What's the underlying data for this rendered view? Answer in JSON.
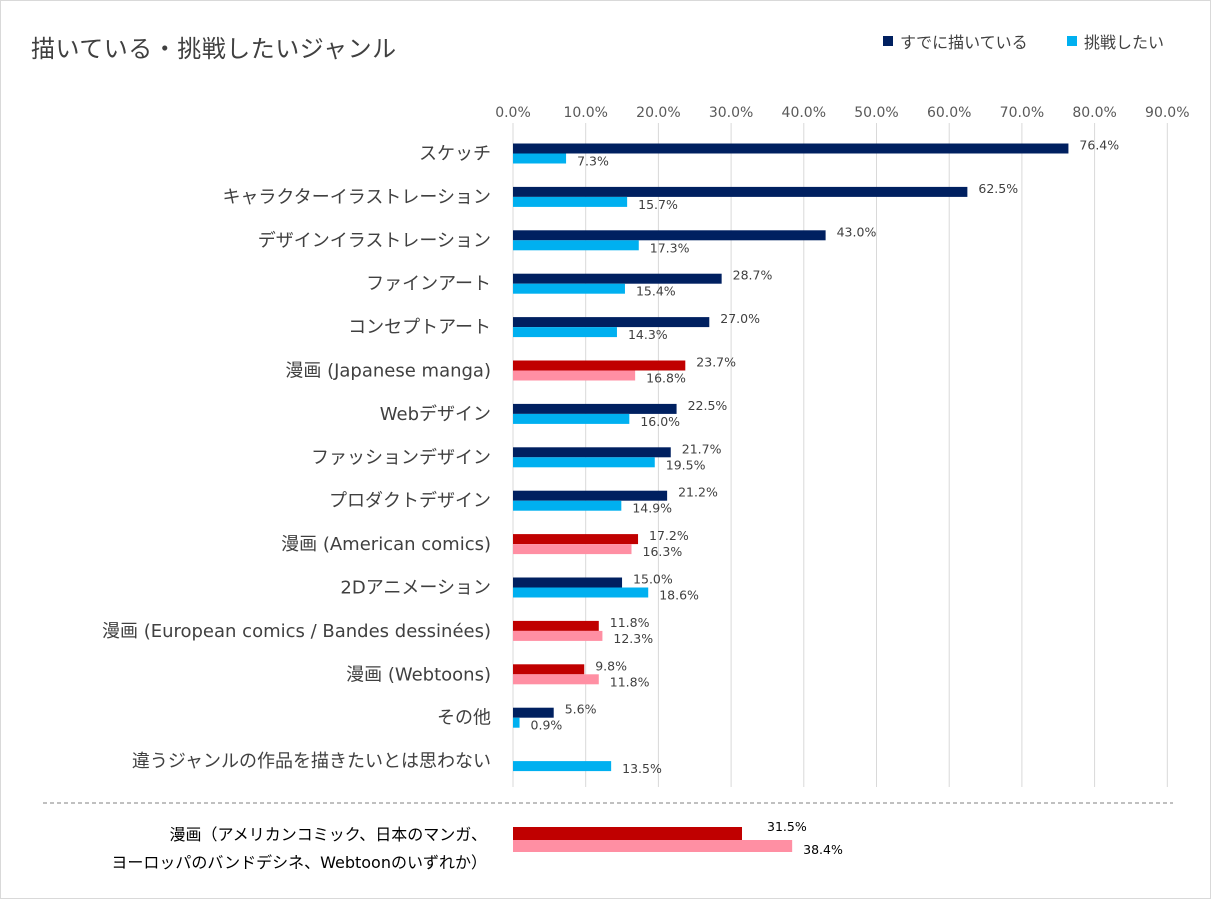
{
  "title": "描いている・挑戦したいジャンル",
  "legend": {
    "series1": {
      "label": "すでに描いている",
      "color": "#002060"
    },
    "series2": {
      "label": "挑戦したい",
      "color": "#00B0F0"
    }
  },
  "highlight_colors": {
    "series1": "#C00000",
    "series2": "#FF8FA3"
  },
  "chart_data": {
    "type": "bar",
    "orientation": "horizontal",
    "title": "描いている・挑戦したいジャンル",
    "xlim": [
      0,
      90
    ],
    "xticks": [
      "0.0%",
      "10.0%",
      "20.0%",
      "30.0%",
      "40.0%",
      "50.0%",
      "60.0%",
      "70.0%",
      "80.0%",
      "90.0%"
    ],
    "grid": true,
    "legend_position": "top-right",
    "series": [
      {
        "name": "すでに描いている",
        "color": "#002060"
      },
      {
        "name": "挑戦したい",
        "color": "#00B0F0"
      }
    ],
    "rows": [
      {
        "label": "スケッチ",
        "v1": 76.4,
        "v2": 7.3,
        "l1": "76.4%",
        "l2": "7.3%",
        "highlight": false
      },
      {
        "label": "キャラクターイラストレーション",
        "v1": 62.5,
        "v2": 15.7,
        "l1": "62.5%",
        "l2": "15.7%",
        "highlight": false
      },
      {
        "label": "デザインイラストレーション",
        "v1": 43.0,
        "v2": 17.3,
        "l1": "43.0%",
        "l2": "17.3%",
        "highlight": false
      },
      {
        "label": "ファインアート",
        "v1": 28.7,
        "v2": 15.4,
        "l1": "28.7%",
        "l2": "15.4%",
        "highlight": false
      },
      {
        "label": "コンセプトアート",
        "v1": 27.0,
        "v2": 14.3,
        "l1": "27.0%",
        "l2": "14.3%",
        "highlight": false
      },
      {
        "label": "漫画 (Japanese manga)",
        "v1": 23.7,
        "v2": 16.8,
        "l1": "23.7%",
        "l2": "16.8%",
        "highlight": true
      },
      {
        "label": "Webデザイン",
        "v1": 22.5,
        "v2": 16.0,
        "l1": "22.5%",
        "l2": "16.0%",
        "highlight": false
      },
      {
        "label": "ファッションデザイン",
        "v1": 21.7,
        "v2": 19.5,
        "l1": "21.7%",
        "l2": "19.5%",
        "highlight": false
      },
      {
        "label": "プロダクトデザイン",
        "v1": 21.2,
        "v2": 14.9,
        "l1": "21.2%",
        "l2": "14.9%",
        "highlight": false
      },
      {
        "label": "漫画 (American comics)",
        "v1": 17.2,
        "v2": 16.3,
        "l1": "17.2%",
        "l2": "16.3%",
        "highlight": true
      },
      {
        "label": "2Dアニメーション",
        "v1": 15.0,
        "v2": 18.6,
        "l1": "15.0%",
        "l2": "18.6%",
        "highlight": false
      },
      {
        "label": "漫画 (European comics / Bandes dessinées)",
        "v1": 11.8,
        "v2": 12.3,
        "l1": "11.8%",
        "l2": "12.3%",
        "highlight": true
      },
      {
        "label": "漫画 (Webtoons)",
        "v1": 9.8,
        "v2": 11.8,
        "l1": "9.8%",
        "l2": "11.8%",
        "highlight": true
      },
      {
        "label": "その他",
        "v1": 5.6,
        "v2": 0.9,
        "l1": "5.6%",
        "l2": "0.9%",
        "highlight": false
      },
      {
        "label": "違うジャンルの作品を描きたいとは思わない",
        "v1": null,
        "v2": 13.5,
        "l1": null,
        "l2": "13.5%",
        "highlight": false
      }
    ],
    "summary": {
      "label_lines": [
        "漫画（アメリカンコミック、日本のマンガ、",
        "ヨーロッパのバンドデシネ、Webtoonのいずれか）"
      ],
      "v1": 31.5,
      "v2": 38.4,
      "l1": "31.5%",
      "l2": "38.4%"
    }
  }
}
